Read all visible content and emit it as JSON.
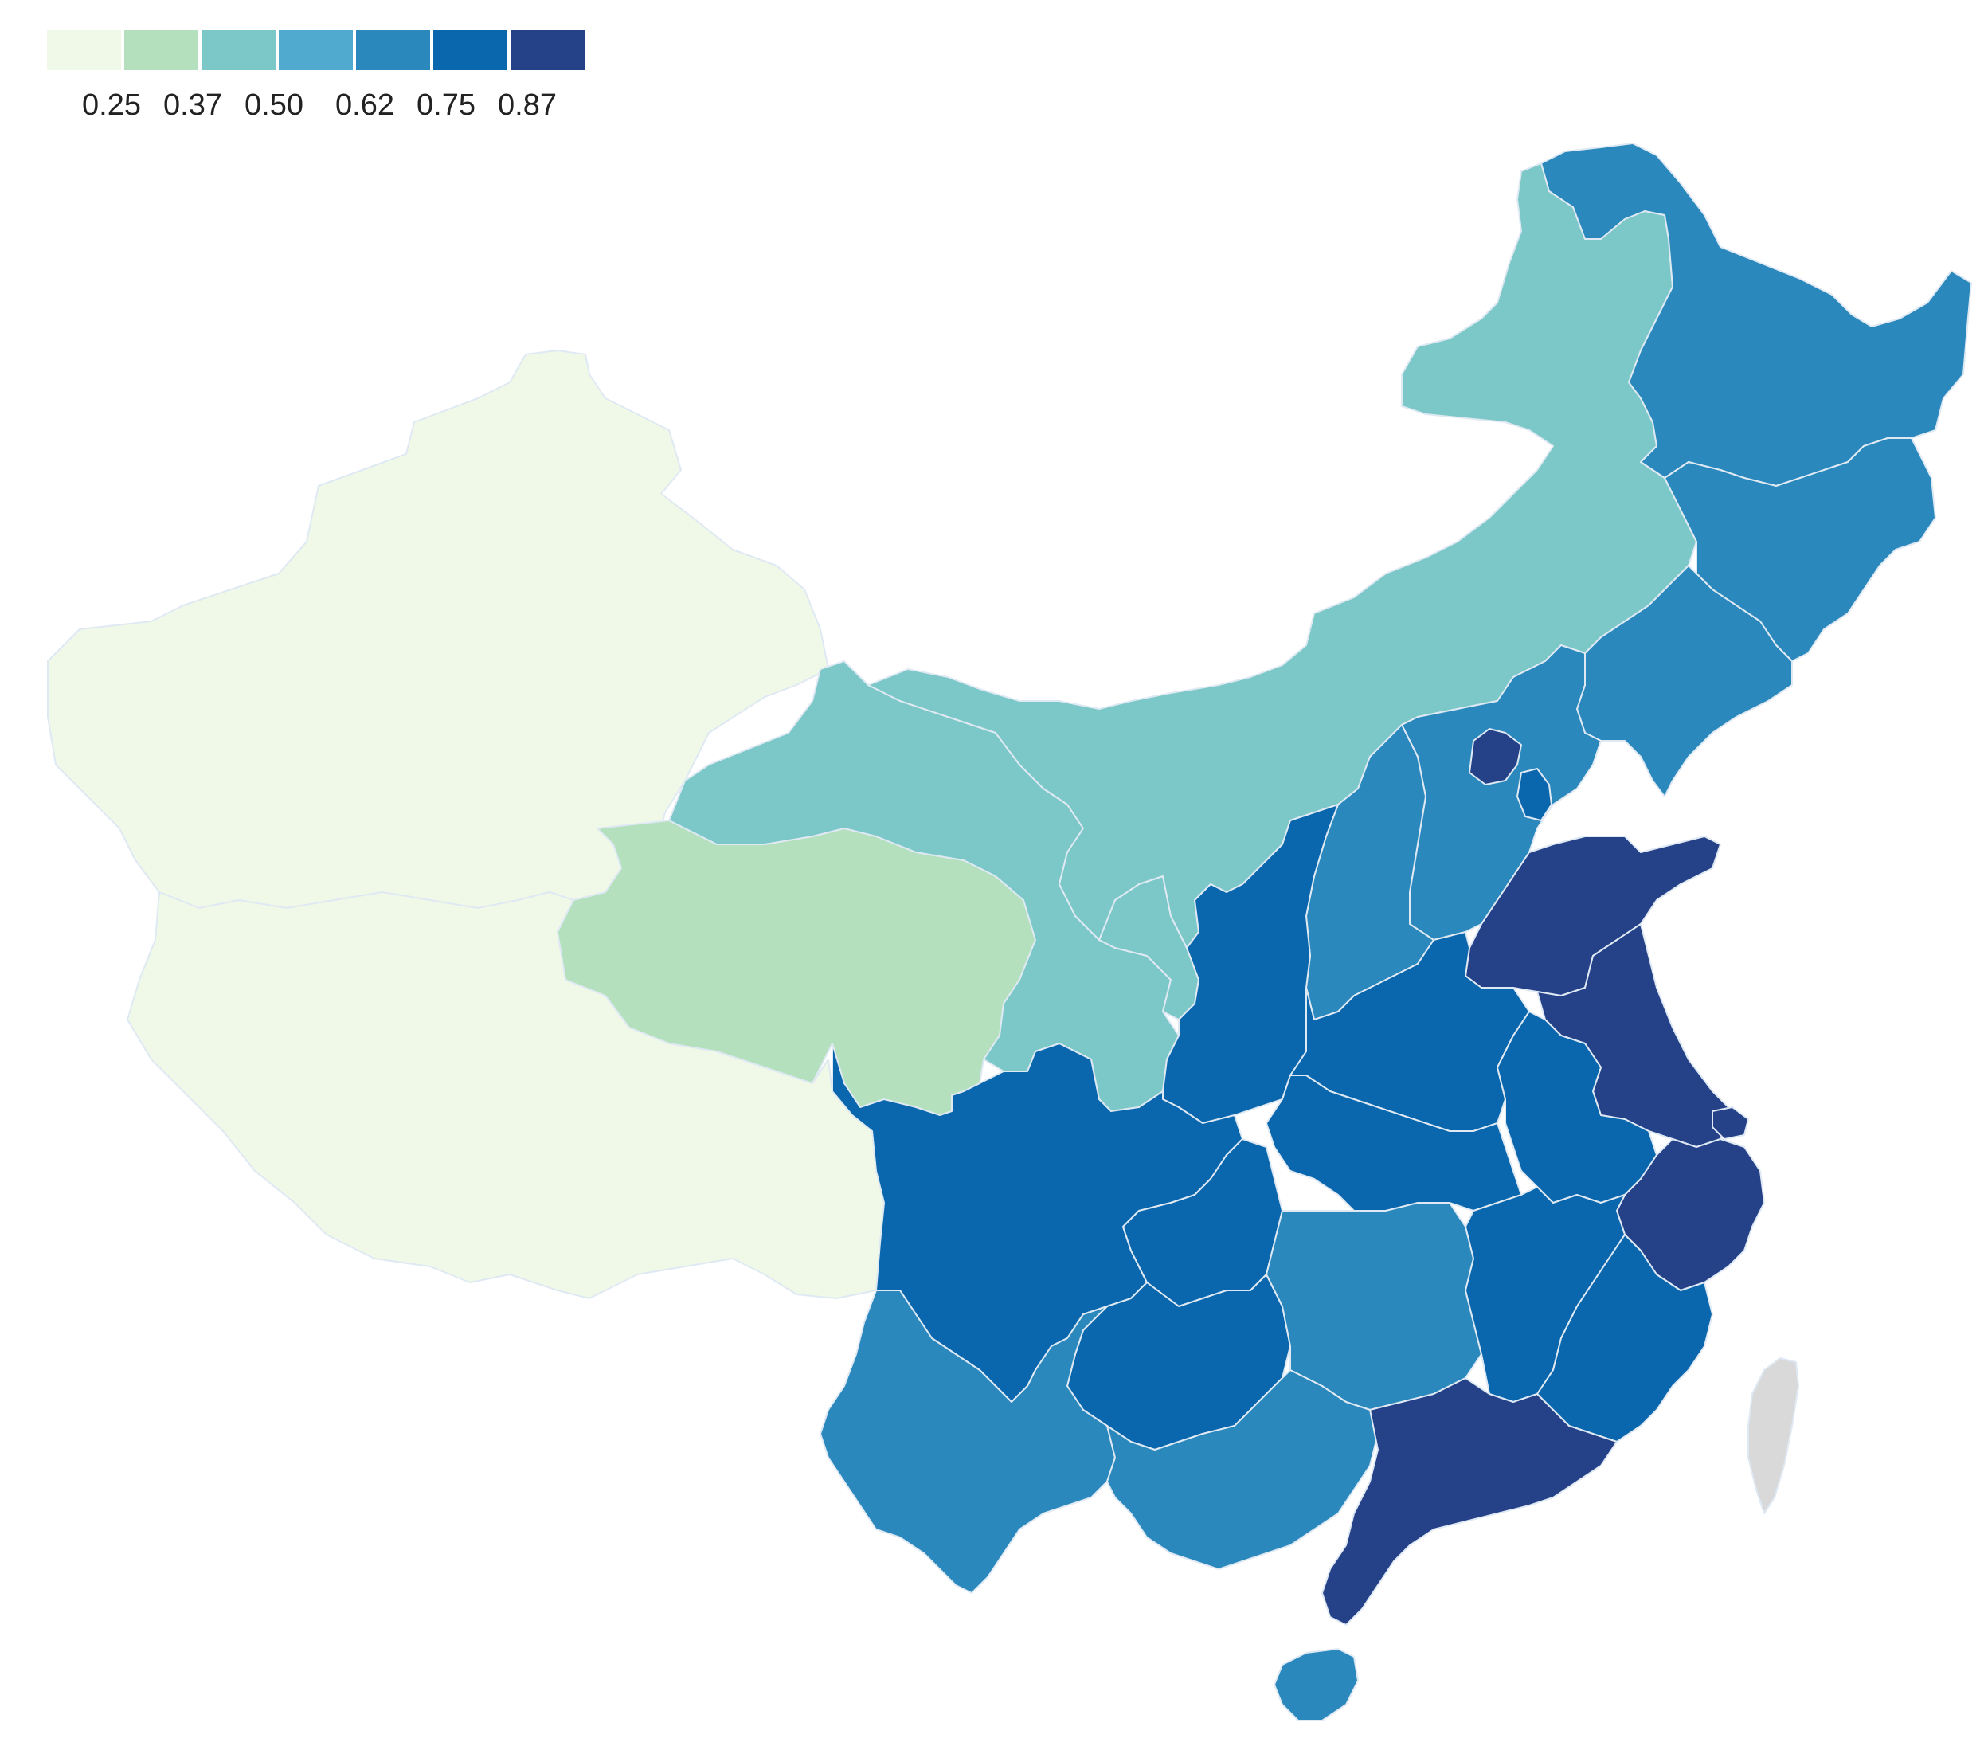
{
  "legend": {
    "colors": [
      "#f0f9e8",
      "#b4e0bd",
      "#7cc8c8",
      "#50a9cf",
      "#2a88bd",
      "#0a67ad",
      "#254289"
    ],
    "labels": [
      "0.25",
      "0.37",
      "0.50",
      "0.62",
      "0.75",
      "0.87"
    ]
  },
  "no_data_color": "#d9d9d9",
  "regions": [
    {
      "id": "xinjiang",
      "bin": 0
    },
    {
      "id": "tibet",
      "bin": 0
    },
    {
      "id": "qinghai",
      "bin": 1
    },
    {
      "id": "gansu",
      "bin": 2
    },
    {
      "id": "inner-mongolia",
      "bin": 2
    },
    {
      "id": "ningxia",
      "bin": 2
    },
    {
      "id": "heilongjiang",
      "bin": 4
    },
    {
      "id": "jilin",
      "bin": 4
    },
    {
      "id": "liaoning",
      "bin": 4
    },
    {
      "id": "hebei",
      "bin": 4
    },
    {
      "id": "shanxi",
      "bin": 4
    },
    {
      "id": "beijing",
      "bin": 6
    },
    {
      "id": "tianjin",
      "bin": 5
    },
    {
      "id": "shaanxi",
      "bin": 5
    },
    {
      "id": "sichuan",
      "bin": 5
    },
    {
      "id": "henan",
      "bin": 5
    },
    {
      "id": "hubei",
      "bin": 5
    },
    {
      "id": "anhui",
      "bin": 5
    },
    {
      "id": "chongqing",
      "bin": 5
    },
    {
      "id": "guizhou",
      "bin": 5
    },
    {
      "id": "jiangxi",
      "bin": 5
    },
    {
      "id": "fujian",
      "bin": 5
    },
    {
      "id": "hunan",
      "bin": 4
    },
    {
      "id": "yunnan",
      "bin": 4
    },
    {
      "id": "guangxi",
      "bin": 4
    },
    {
      "id": "hainan",
      "bin": 4
    },
    {
      "id": "shandong",
      "bin": 6
    },
    {
      "id": "jiangsu",
      "bin": 6
    },
    {
      "id": "shanghai",
      "bin": 6
    },
    {
      "id": "zhejiang",
      "bin": 6
    },
    {
      "id": "guangdong",
      "bin": 6
    },
    {
      "id": "taiwan",
      "bin": null
    }
  ]
}
